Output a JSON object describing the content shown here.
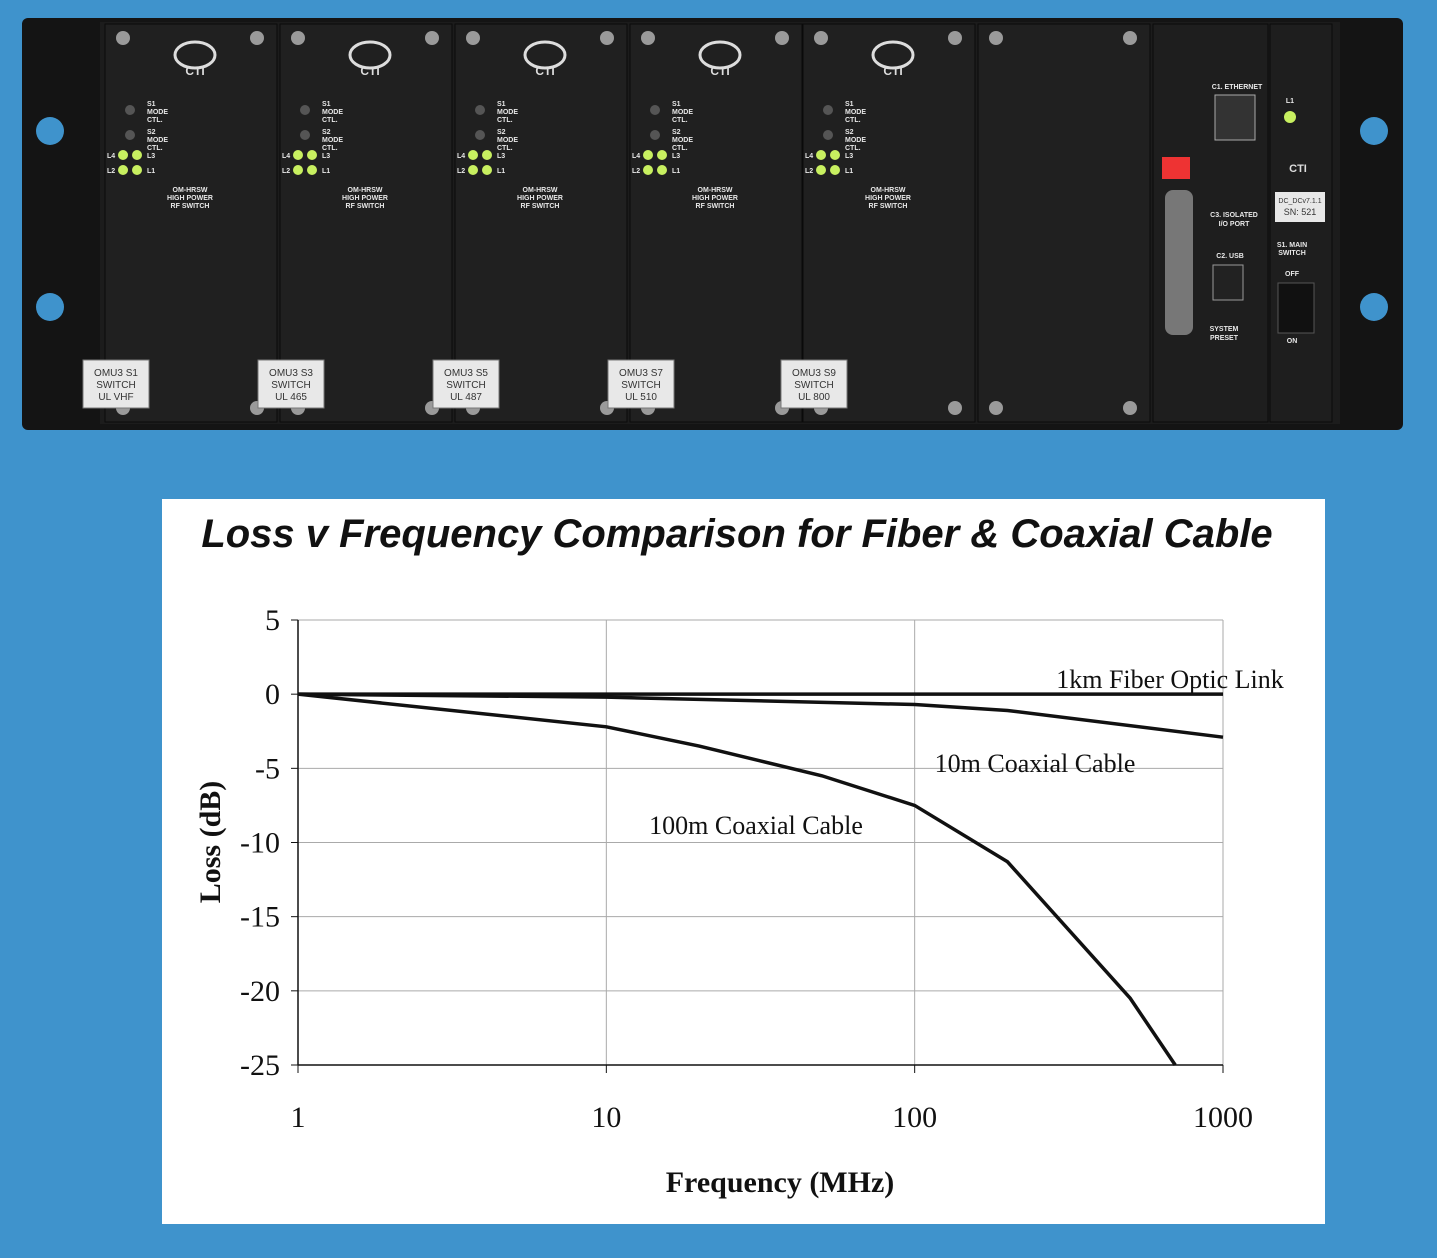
{
  "rack": {
    "module_text": {
      "logo": "CTI",
      "controls": [
        "S1",
        "MODE",
        "CTL.",
        "S2",
        "MODE",
        "CTL."
      ],
      "leds": [
        "L4",
        "L3",
        "L2",
        "L1"
      ],
      "name": [
        "OM-HRSW",
        "HIGH POWER",
        "RF SWITCH"
      ]
    },
    "modules": [
      {
        "label": [
          "OMU3 S1",
          "SWITCH",
          "UL VHF"
        ]
      },
      {
        "label": [
          "OMU3 S3",
          "SWITCH",
          "UL 465"
        ]
      },
      {
        "label": [
          "OMU3 S5",
          "SWITCH",
          "UL 487"
        ]
      },
      {
        "label": [
          "OMU3 S7",
          "SWITCH",
          "UL 510"
        ]
      },
      {
        "label": [
          "OMU3 S9",
          "SWITCH",
          "UL 800"
        ]
      }
    ],
    "control_panel": {
      "ethernet": "C1. ETHERNET",
      "io_port": [
        "C3. ISOLATED",
        "I/O PORT"
      ],
      "usb": "C2. USB",
      "preset": [
        "SYSTEM",
        "PRESET"
      ]
    },
    "power_panel": {
      "led": "L1",
      "logo": "CTI",
      "version": "DC_DCv7.1.1",
      "serial": "SN: 521",
      "switch": [
        "S1. MAIN",
        "SWITCH"
      ],
      "off": "OFF",
      "on": "ON"
    }
  },
  "chart_data": {
    "type": "line",
    "title": "Loss v Frequency Comparison for Fiber & Coaxial Cable",
    "xlabel": "Frequency (MHz)",
    "ylabel": "Loss (dB)",
    "xscale": "log",
    "grid": true,
    "color": "#111111",
    "xlim": [
      1,
      1000
    ],
    "xticks": [
      1,
      10,
      100,
      1000
    ],
    "ylim": [
      -25,
      5
    ],
    "yticks": [
      5,
      0,
      -5,
      -10,
      -15,
      -20,
      -25
    ],
    "series": [
      {
        "name": "1km Fiber Optic Link",
        "x": [
          1,
          10,
          100,
          1000
        ],
        "values": [
          0,
          0,
          0,
          0
        ]
      },
      {
        "name": "10m Coaxial Cable",
        "x": [
          1,
          10,
          100,
          200,
          1000
        ],
        "values": [
          0,
          -0.2,
          -0.7,
          -1.1,
          -2.9
        ]
      },
      {
        "name": "100m Coaxial Cable",
        "x": [
          1,
          10,
          20,
          50,
          100,
          200,
          500,
          700
        ],
        "values": [
          0,
          -2.2,
          -3.5,
          -5.5,
          -7.5,
          -11.3,
          -20.5,
          -25
        ]
      }
    ]
  }
}
